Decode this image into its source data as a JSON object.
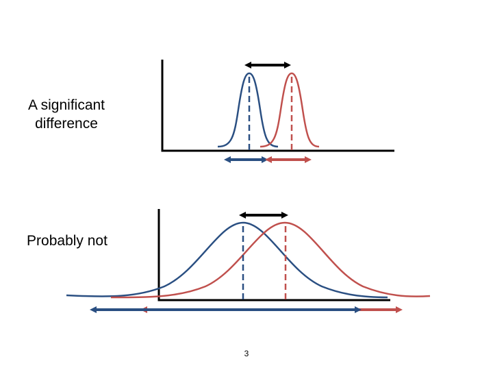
{
  "slide": {
    "panel_top_label": "A significant difference",
    "panel_bottom_label": "Probably not",
    "page_number": "3"
  },
  "colors": {
    "group_a": "#2a4f82",
    "group_b": "#c0504d",
    "axis": "#000000"
  }
}
